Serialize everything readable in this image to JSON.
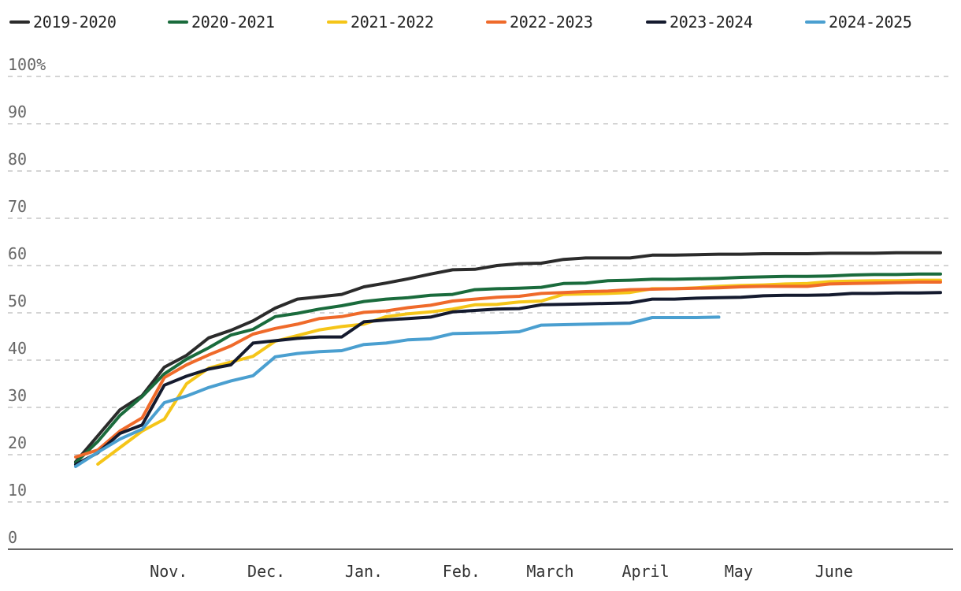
{
  "chart_data": {
    "type": "line",
    "title": "",
    "xlabel": "",
    "ylabel": "",
    "ylim": [
      0,
      100
    ],
    "y_ticks": [
      {
        "value": 100,
        "label": "100%"
      },
      {
        "value": 90,
        "label": "90"
      },
      {
        "value": 80,
        "label": "80"
      },
      {
        "value": 70,
        "label": "70"
      },
      {
        "value": 60,
        "label": "60"
      },
      {
        "value": 50,
        "label": "50"
      },
      {
        "value": 40,
        "label": "40"
      },
      {
        "value": 30,
        "label": "30"
      },
      {
        "value": 20,
        "label": "20"
      },
      {
        "value": 10,
        "label": "10"
      },
      {
        "value": 0,
        "label": "0"
      }
    ],
    "x_range": [
      0,
      39
    ],
    "x_unit": "weeks since October 1",
    "x_ticks": [
      {
        "x": 4.2,
        "label": "Nov."
      },
      {
        "x": 8.6,
        "label": "Dec."
      },
      {
        "x": 13.0,
        "label": "Jan."
      },
      {
        "x": 17.4,
        "label": "Feb."
      },
      {
        "x": 21.4,
        "label": "March"
      },
      {
        "x": 25.7,
        "label": "April"
      },
      {
        "x": 29.9,
        "label": "May"
      },
      {
        "x": 34.2,
        "label": "June"
      }
    ],
    "series": [
      {
        "name": "2019-2020",
        "color": "#2b2b2b",
        "x": [
          0,
          1,
          2,
          3,
          4,
          5,
          6,
          7,
          8,
          9,
          10,
          11,
          12,
          13,
          14,
          15,
          16,
          17,
          18,
          19,
          20,
          21,
          22,
          23,
          24,
          25,
          26,
          27,
          28,
          29,
          30,
          31,
          32,
          33,
          34,
          35,
          36,
          37,
          38,
          39
        ],
        "y": [
          18.5,
          24.0,
          29.5,
          32.5,
          38.5,
          41.0,
          44.7,
          46.3,
          48.3,
          51.0,
          52.9,
          53.4,
          53.9,
          55.5,
          56.3,
          57.2,
          58.2,
          59.1,
          59.2,
          60.0,
          60.4,
          60.5,
          61.3,
          61.6,
          61.6,
          61.6,
          62.2,
          62.2,
          62.3,
          62.4,
          62.4,
          62.5,
          62.5,
          62.5,
          62.6,
          62.6,
          62.6,
          62.7,
          62.7,
          62.7
        ]
      },
      {
        "name": "2020-2021",
        "color": "#1a6b3c",
        "x": [
          0,
          1,
          2,
          3,
          4,
          5,
          6,
          7,
          8,
          9,
          10,
          11,
          12,
          13,
          14,
          15,
          16,
          17,
          18,
          19,
          20,
          21,
          22,
          23,
          24,
          25,
          26,
          27,
          28,
          29,
          30,
          31,
          32,
          33,
          34,
          35,
          36,
          37,
          38,
          39
        ],
        "y": [
          18.3,
          22.8,
          28.3,
          32.3,
          37.1,
          40.2,
          42.6,
          45.3,
          46.5,
          49.2,
          49.9,
          50.8,
          51.5,
          52.4,
          52.9,
          53.2,
          53.7,
          53.9,
          54.9,
          55.1,
          55.2,
          55.4,
          56.2,
          56.3,
          56.8,
          56.9,
          57.1,
          57.1,
          57.2,
          57.3,
          57.5,
          57.6,
          57.7,
          57.7,
          57.8,
          58.0,
          58.1,
          58.1,
          58.2,
          58.2
        ]
      },
      {
        "name": "2021-2022",
        "color": "#f5c518",
        "x": [
          1,
          2,
          3,
          4,
          5,
          6,
          7,
          8,
          9,
          10,
          11,
          12,
          13,
          14,
          15,
          16,
          17,
          18,
          19,
          20,
          21,
          22,
          23,
          24,
          25,
          26,
          27,
          28,
          29,
          30,
          31,
          32,
          33,
          34,
          35,
          36,
          37,
          38,
          39
        ],
        "y": [
          18.0,
          21.5,
          25.0,
          27.5,
          35.0,
          38.3,
          39.6,
          40.8,
          44.0,
          45.2,
          46.4,
          47.1,
          47.6,
          49.2,
          49.8,
          50.2,
          50.8,
          51.7,
          51.8,
          52.3,
          52.5,
          53.9,
          54.0,
          54.1,
          54.3,
          55.1,
          55.1,
          55.3,
          55.6,
          55.8,
          55.9,
          56.1,
          56.2,
          56.6,
          56.7,
          56.8,
          56.8,
          56.9,
          56.9
        ]
      },
      {
        "name": "2022-2023",
        "color": "#ef6a2a",
        "x": [
          0,
          1,
          2,
          3,
          4,
          5,
          6,
          7,
          8,
          9,
          10,
          11,
          12,
          13,
          14,
          15,
          16,
          17,
          18,
          19,
          20,
          21,
          22,
          23,
          24,
          25,
          26,
          27,
          28,
          29,
          30,
          31,
          32,
          33,
          34,
          35,
          36,
          37,
          38,
          39
        ],
        "y": [
          19.5,
          21.0,
          25.0,
          27.8,
          36.3,
          39.0,
          41.1,
          43.0,
          45.5,
          46.7,
          47.6,
          48.8,
          49.2,
          50.1,
          50.4,
          51.1,
          51.6,
          52.5,
          52.9,
          53.3,
          53.5,
          54.1,
          54.3,
          54.5,
          54.6,
          54.9,
          55.0,
          55.1,
          55.2,
          55.3,
          55.5,
          55.6,
          55.6,
          55.6,
          56.1,
          56.2,
          56.3,
          56.4,
          56.5,
          56.5
        ]
      },
      {
        "name": "2023-2024",
        "color": "#141a2e",
        "x": [
          0,
          1,
          2,
          3,
          4,
          5,
          6,
          7,
          8,
          9,
          10,
          11,
          12,
          13,
          14,
          15,
          16,
          17,
          18,
          19,
          20,
          21,
          22,
          23,
          24,
          25,
          26,
          27,
          28,
          29,
          30,
          31,
          32,
          33,
          34,
          35,
          36,
          37,
          38,
          39
        ],
        "y": [
          17.9,
          20.4,
          24.5,
          26.3,
          34.7,
          36.6,
          38.1,
          39.0,
          43.6,
          44.1,
          44.6,
          44.9,
          44.9,
          48.1,
          48.5,
          48.8,
          49.1,
          50.2,
          50.5,
          50.8,
          50.9,
          51.7,
          51.8,
          51.9,
          52.0,
          52.1,
          52.9,
          52.9,
          53.1,
          53.2,
          53.3,
          53.6,
          53.7,
          53.7,
          53.8,
          54.1,
          54.1,
          54.2,
          54.2,
          54.3
        ]
      },
      {
        "name": "2024-2025",
        "color": "#4a9fd0",
        "x": [
          0,
          1,
          2,
          3,
          4,
          5,
          6,
          7,
          8,
          9,
          10,
          11,
          12,
          13,
          14,
          15,
          16,
          17,
          18,
          19,
          20,
          21,
          22,
          23,
          24,
          25,
          26,
          27,
          28,
          29
        ],
        "y": [
          17.5,
          20.5,
          23.3,
          25.4,
          31.0,
          32.4,
          34.2,
          35.6,
          36.7,
          40.7,
          41.4,
          41.8,
          42.0,
          43.3,
          43.6,
          44.3,
          44.5,
          45.6,
          45.7,
          45.8,
          46.0,
          47.4,
          47.5,
          47.6,
          47.7,
          47.8,
          49.0,
          49.0,
          49.0,
          49.1
        ]
      }
    ]
  }
}
